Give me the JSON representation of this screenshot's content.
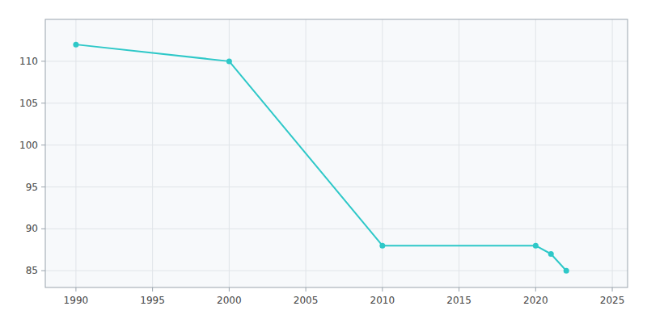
{
  "chart_data": {
    "type": "line",
    "x": [
      1990,
      2000,
      2010,
      2020,
      2021,
      2022
    ],
    "values": [
      112,
      110,
      88,
      88,
      87,
      85
    ],
    "color": "#2EC8C8",
    "marker": "circle",
    "xlim": [
      1988,
      2026
    ],
    "ylim": [
      83,
      115
    ],
    "xticks": [
      1990,
      1995,
      2000,
      2005,
      2010,
      2015,
      2020,
      2025
    ],
    "yticks": [
      85,
      90,
      95,
      100,
      105,
      110
    ],
    "grid": true
  }
}
